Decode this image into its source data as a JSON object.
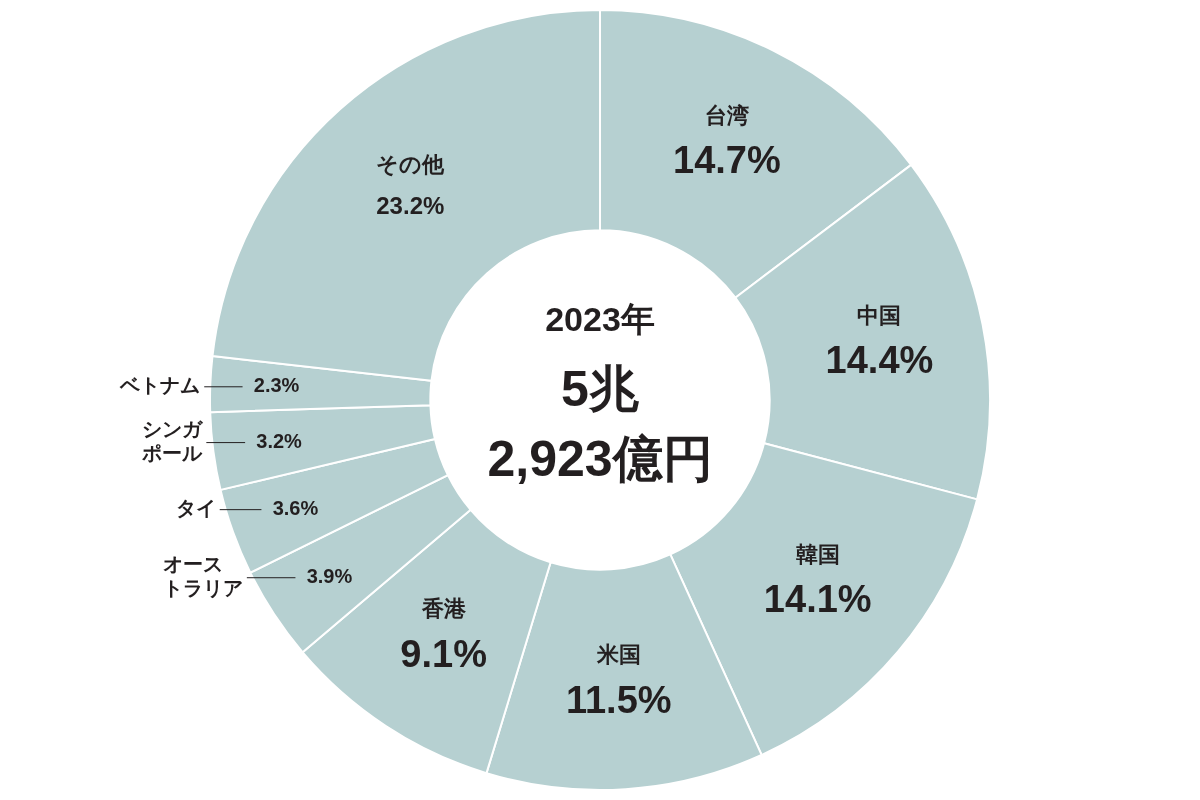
{
  "chart_data": {
    "type": "donut",
    "categories": [
      "台湾",
      "中国",
      "韓国",
      "米国",
      "香港",
      "オーストラリア",
      "タイ",
      "シンガポール",
      "ベトナム",
      "その他"
    ],
    "values": [
      14.7,
      14.4,
      14.1,
      11.5,
      9.1,
      3.9,
      3.6,
      3.2,
      2.3,
      23.2
    ],
    "colors": [
      "#b6d0d1",
      "#b6d0d1",
      "#b6d0d1",
      "#b6d0d1",
      "#b6d0d1",
      "#b6d0d1",
      "#b6d0d1",
      "#b6d0d1",
      "#b6d0d1",
      "#b6d0d1"
    ],
    "value_labels": [
      "14.7%",
      "14.4%",
      "14.1%",
      "11.5%",
      "9.1%",
      "3.9%",
      "3.6%",
      "3.2%",
      "2.3%",
      "23.2%"
    ],
    "annotations": [
      "2023年",
      "5兆",
      "2,923億円"
    ],
    "legend": false
  }
}
